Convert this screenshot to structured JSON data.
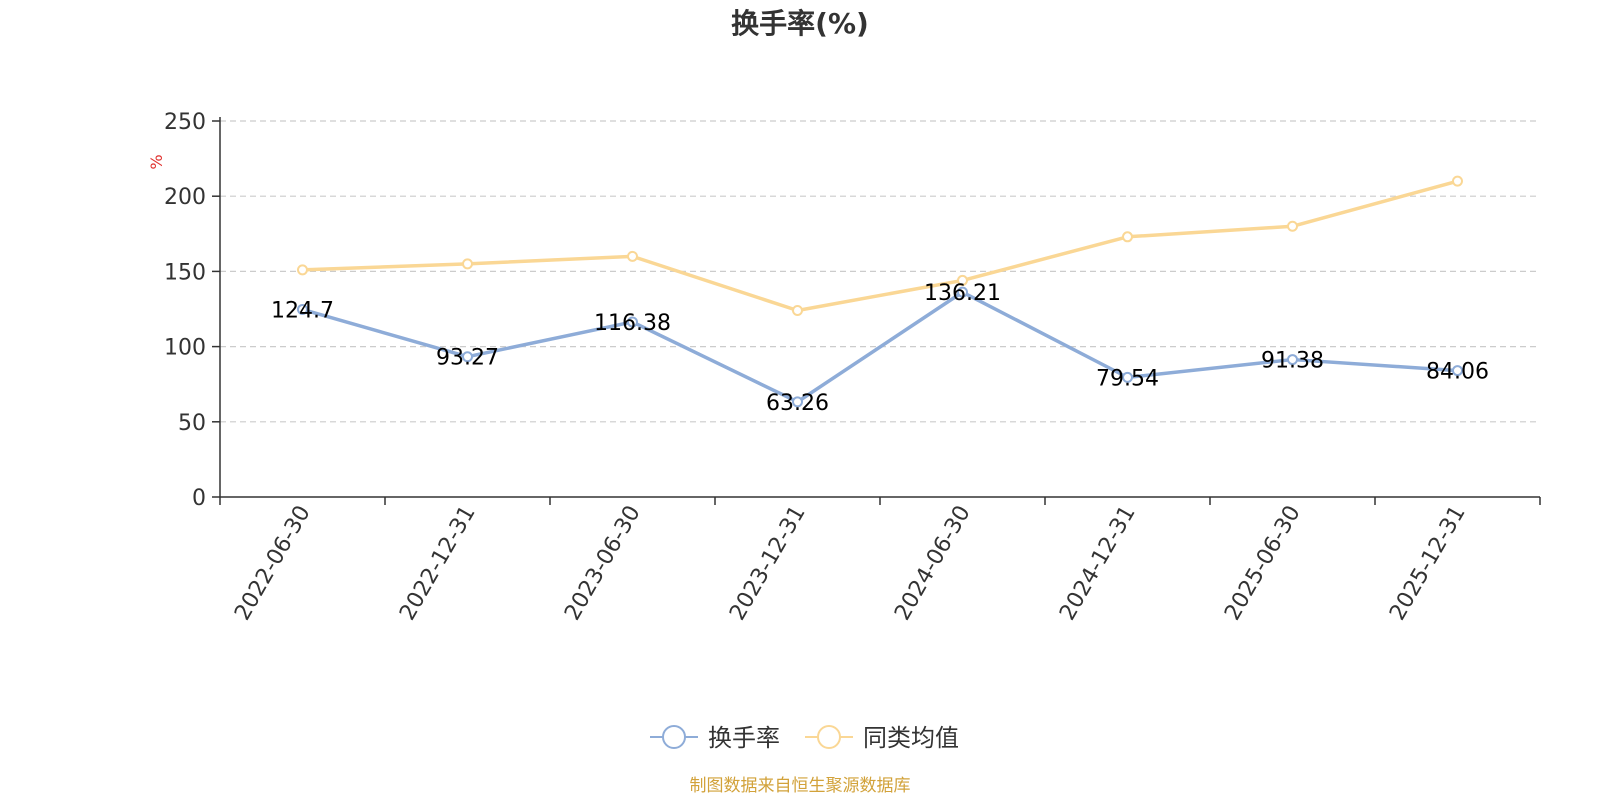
{
  "chart_data": {
    "type": "line",
    "title": "换手率(%)",
    "ylabel": "%",
    "xlabel": "",
    "categories": [
      "2022-06-30",
      "2022-12-31",
      "2023-06-30",
      "2023-12-31",
      "2024-06-30",
      "2024-12-31",
      "2025-06-30",
      "2025-12-31"
    ],
    "ylim": [
      0,
      250
    ],
    "yticks": [
      0,
      50,
      100,
      150,
      200,
      250
    ],
    "grid": true,
    "legend_position": "bottom",
    "series": [
      {
        "name": "换手率",
        "values": [
          124.7,
          93.27,
          116.38,
          63.26,
          136.21,
          79.54,
          91.38,
          84.06
        ],
        "labels": [
          "124.7",
          "93.27",
          "116.38",
          "63.26",
          "136.21",
          "79.54",
          "91.38",
          "84.06"
        ],
        "color": "#8eacd8"
      },
      {
        "name": "同类均值",
        "values": [
          151,
          155,
          160,
          124,
          144,
          173,
          180,
          210
        ],
        "color": "#fad795"
      }
    ],
    "source": "制图数据来自恒生聚源数据库"
  },
  "colors": {
    "axis": "#333333",
    "grid": "#cccccc",
    "unit": "#e0312e",
    "source": "#d2a23a"
  }
}
